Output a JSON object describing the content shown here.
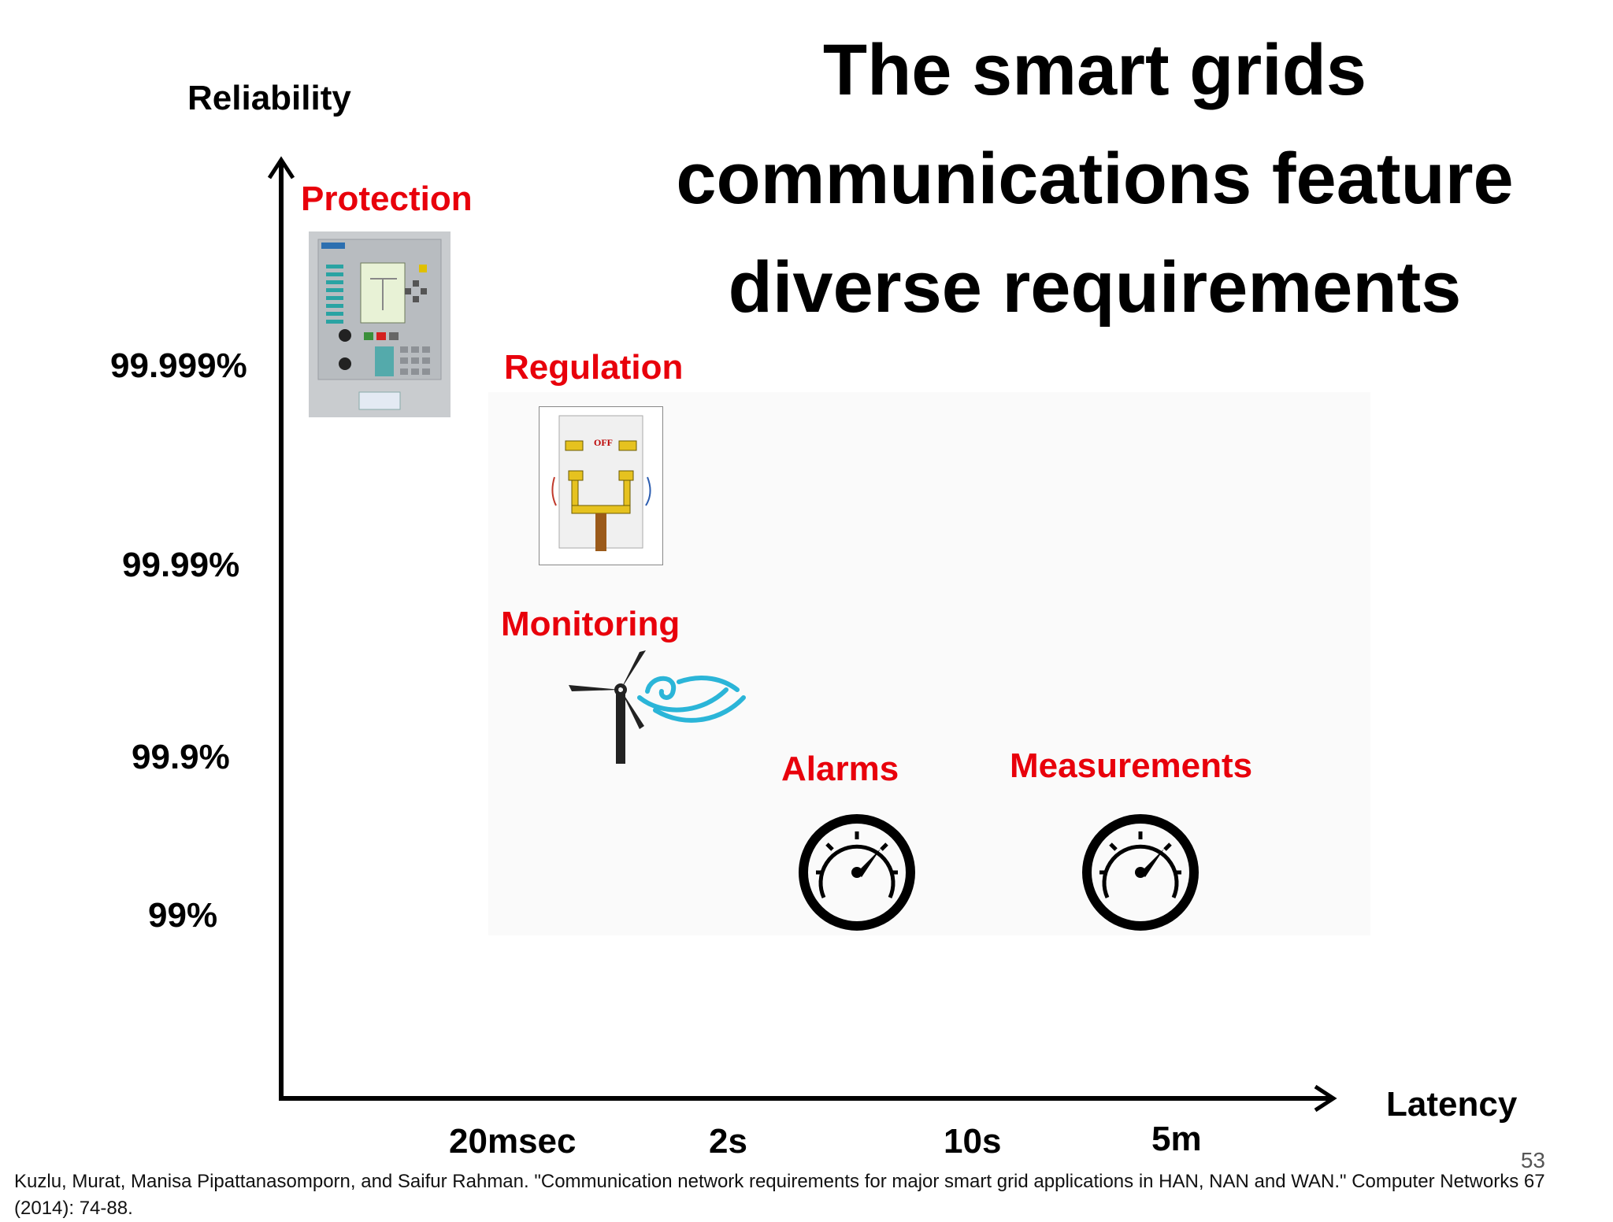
{
  "title": "The smart grids communications feature diverse requirements",
  "y_axis": {
    "title": "Reliability",
    "ticks": [
      "99.999%",
      "99.99%",
      "99.9%",
      "99%"
    ]
  },
  "x_axis": {
    "title": "Latency",
    "ticks": [
      "20msec",
      "2s",
      "10s",
      "5m"
    ]
  },
  "categories": [
    {
      "label": "Protection",
      "icon": "protection-relay-panel-icon"
    },
    {
      "label": "Regulation",
      "icon": "switch-on-off-icon"
    },
    {
      "label": "Monitoring",
      "icon": "wind-turbine-icon"
    },
    {
      "label": "Alarms",
      "icon": "gauge-icon"
    },
    {
      "label": "Measurements",
      "icon": "gauge-icon"
    }
  ],
  "citation": "Kuzlu, Murat, Manisa Pipattanasomporn, and Saifur Rahman. \"Communication network requirements for major smart grid applications in HAN, NAN and WAN.\" Computer Networks 67 (2014): 74-88.",
  "page_number": "53",
  "colors": {
    "category_label": "#e8000b",
    "axis": "#000000"
  }
}
